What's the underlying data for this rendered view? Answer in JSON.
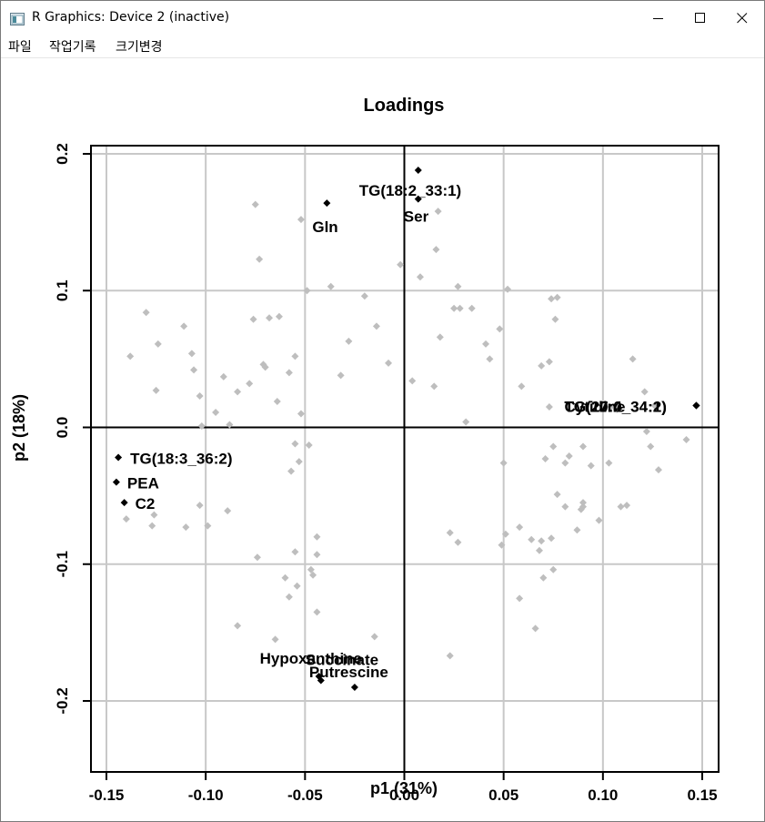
{
  "window": {
    "title": "R Graphics: Device 2 (inactive)"
  },
  "menu": {
    "items": [
      "파일",
      "작업기록",
      "크기변경"
    ]
  },
  "colors": {
    "highlight": "#000000",
    "background_points": "#bebebe",
    "grid": "#c8c8c8"
  },
  "chart_data": {
    "type": "scatter",
    "title": "Loadings",
    "xlabel": "p1 (31%)",
    "ylabel": "p2 (18%)",
    "xlim": [
      -0.15,
      0.15
    ],
    "ylim": [
      -0.2,
      0.2
    ],
    "xticks": [
      -0.15,
      -0.1,
      -0.05,
      0.0,
      0.05,
      0.1,
      0.15
    ],
    "xtick_labels": [
      "-0.15",
      "-0.10",
      "-0.05",
      "0.00",
      "0.05",
      "0.10",
      "0.15"
    ],
    "yticks": [
      -0.2,
      -0.1,
      0.0,
      0.1,
      0.2
    ],
    "ytick_labels": [
      "-0.2",
      "-0.1",
      "0.0",
      "0.1",
      "0.2"
    ],
    "grid": true,
    "reference_lines": {
      "x": 0,
      "y": 0
    },
    "highlighted": [
      {
        "label": "TG(18:2_33:1)",
        "x": 0.007,
        "y": 0.188
      },
      {
        "label": "Ser",
        "x": 0.007,
        "y": 0.167
      },
      {
        "label": "Gln",
        "x": -0.039,
        "y": 0.164
      },
      {
        "label": "TG(17:0_34:2)",
        "x": 0.147,
        "y": 0.016
      },
      {
        "label": "TG(20:4_34:1)",
        "x": 0.147,
        "y": 0.016
      },
      {
        "label": "Cytidine",
        "x": 0.147,
        "y": 0.016
      },
      {
        "label": "TG(18:3_36:2)",
        "x": -0.144,
        "y": -0.022
      },
      {
        "label": "PEA",
        "x": -0.145,
        "y": -0.04
      },
      {
        "label": "C2",
        "x": -0.141,
        "y": -0.055
      },
      {
        "label": "Hypoxanthine",
        "x": -0.043,
        "y": -0.182
      },
      {
        "label": "Succinate",
        "x": -0.042,
        "y": -0.185
      },
      {
        "label": "Putrescine",
        "x": -0.025,
        "y": -0.19
      }
    ],
    "others": [
      [
        -0.075,
        0.163
      ],
      [
        -0.052,
        0.152
      ],
      [
        0.017,
        0.158
      ],
      [
        -0.073,
        0.123
      ],
      [
        0.016,
        0.13
      ],
      [
        -0.002,
        0.119
      ],
      [
        0.008,
        0.11
      ],
      [
        -0.049,
        0.1
      ],
      [
        -0.037,
        0.103
      ],
      [
        0.027,
        0.103
      ],
      [
        -0.02,
        0.096
      ],
      [
        0.052,
        0.101
      ],
      [
        0.077,
        0.095
      ],
      [
        0.074,
        0.094
      ],
      [
        -0.13,
        0.084
      ],
      [
        0.025,
        0.087
      ],
      [
        0.028,
        0.087
      ],
      [
        0.034,
        0.087
      ],
      [
        -0.068,
        0.08
      ],
      [
        -0.063,
        0.081
      ],
      [
        -0.111,
        0.074
      ],
      [
        -0.014,
        0.074
      ],
      [
        -0.076,
        0.079
      ],
      [
        0.076,
        0.079
      ],
      [
        0.048,
        0.072
      ],
      [
        -0.107,
        0.054
      ],
      [
        -0.028,
        0.063
      ],
      [
        0.018,
        0.066
      ],
      [
        -0.124,
        0.061
      ],
      [
        0.041,
        0.061
      ],
      [
        -0.138,
        0.052
      ],
      [
        -0.071,
        0.046
      ],
      [
        -0.055,
        0.052
      ],
      [
        0.115,
        0.05
      ],
      [
        -0.106,
        0.042
      ],
      [
        -0.091,
        0.037
      ],
      [
        -0.07,
        0.044
      ],
      [
        -0.008,
        0.047
      ],
      [
        0.073,
        0.048
      ],
      [
        0.069,
        0.045
      ],
      [
        -0.058,
        0.04
      ],
      [
        -0.032,
        0.038
      ],
      [
        0.043,
        0.05
      ],
      [
        -0.084,
        0.026
      ],
      [
        -0.078,
        0.032
      ],
      [
        -0.125,
        0.027
      ],
      [
        0.004,
        0.034
      ],
      [
        0.015,
        0.03
      ],
      [
        0.059,
        0.03
      ],
      [
        0.121,
        0.026
      ],
      [
        -0.103,
        0.023
      ],
      [
        -0.095,
        0.011
      ],
      [
        -0.064,
        0.019
      ],
      [
        0.073,
        0.015
      ],
      [
        0.104,
        0.015
      ],
      [
        0.107,
        0.013
      ],
      [
        0.126,
        0.016
      ],
      [
        -0.052,
        0.01
      ],
      [
        0.031,
        0.004
      ],
      [
        -0.102,
        0.001
      ],
      [
        -0.088,
        0.002
      ],
      [
        0.122,
        -0.003
      ],
      [
        0.142,
        -0.009
      ],
      [
        -0.055,
        -0.012
      ],
      [
        -0.048,
        -0.013
      ],
      [
        0.075,
        -0.014
      ],
      [
        0.09,
        -0.014
      ],
      [
        0.071,
        -0.023
      ],
      [
        0.083,
        -0.021
      ],
      [
        0.124,
        -0.014
      ],
      [
        -0.053,
        -0.025
      ],
      [
        0.05,
        -0.026
      ],
      [
        0.081,
        -0.026
      ],
      [
        0.094,
        -0.028
      ],
      [
        0.103,
        -0.026
      ],
      [
        -0.057,
        -0.032
      ],
      [
        0.128,
        -0.031
      ],
      [
        0.077,
        -0.049
      ],
      [
        0.09,
        -0.055
      ],
      [
        0.081,
        -0.058
      ],
      [
        0.09,
        -0.058
      ],
      [
        0.109,
        -0.058
      ],
      [
        0.112,
        -0.057
      ],
      [
        -0.103,
        -0.057
      ],
      [
        -0.089,
        -0.061
      ],
      [
        0.089,
        -0.06
      ],
      [
        -0.126,
        -0.064
      ],
      [
        -0.14,
        -0.067
      ],
      [
        0.098,
        -0.068
      ],
      [
        -0.127,
        -0.072
      ],
      [
        -0.099,
        -0.072
      ],
      [
        -0.11,
        -0.073
      ],
      [
        0.058,
        -0.073
      ],
      [
        0.087,
        -0.075
      ],
      [
        0.023,
        -0.077
      ],
      [
        0.051,
        -0.078
      ],
      [
        -0.044,
        -0.08
      ],
      [
        0.064,
        -0.082
      ],
      [
        0.069,
        -0.083
      ],
      [
        0.074,
        -0.081
      ],
      [
        0.027,
        -0.084
      ],
      [
        0.049,
        -0.086
      ],
      [
        -0.074,
        -0.095
      ],
      [
        -0.055,
        -0.091
      ],
      [
        -0.044,
        -0.093
      ],
      [
        0.068,
        -0.09
      ],
      [
        -0.047,
        -0.104
      ],
      [
        -0.046,
        -0.108
      ],
      [
        -0.06,
        -0.11
      ],
      [
        0.075,
        -0.104
      ],
      [
        0.07,
        -0.11
      ],
      [
        -0.054,
        -0.116
      ],
      [
        -0.058,
        -0.124
      ],
      [
        0.058,
        -0.125
      ],
      [
        -0.044,
        -0.135
      ],
      [
        -0.084,
        -0.145
      ],
      [
        0.066,
        -0.147
      ],
      [
        -0.065,
        -0.155
      ],
      [
        -0.015,
        -0.153
      ],
      [
        0.023,
        -0.167
      ]
    ]
  }
}
